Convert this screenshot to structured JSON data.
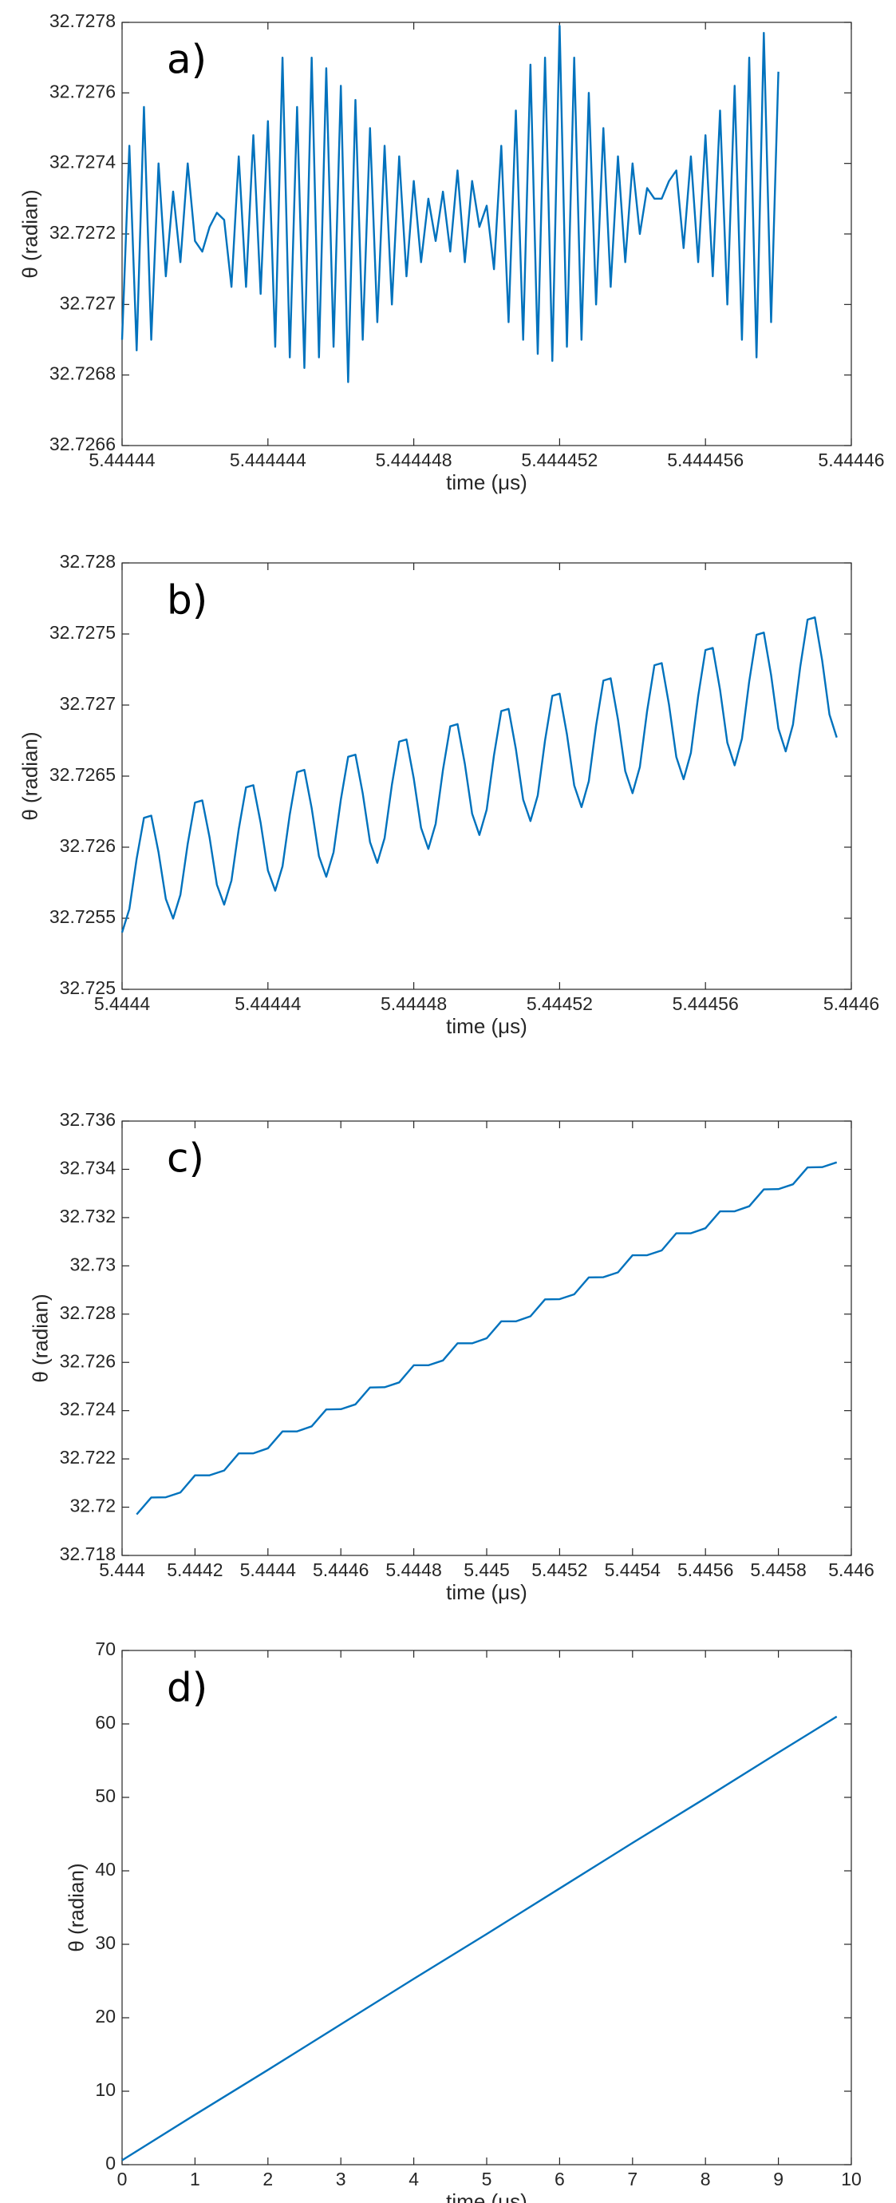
{
  "chart_data": [
    {
      "type": "line",
      "annotation": "a)",
      "xlabel": "time (μs)",
      "ylabel": "θ (radian)",
      "x": [
        5.44444,
        5.4444402,
        5.4444404,
        5.4444406,
        5.4444408,
        5.444441,
        5.4444412,
        5.4444414,
        5.4444416,
        5.4444418,
        5.444442,
        5.4444422,
        5.4444424,
        5.4444426,
        5.4444428,
        5.444443,
        5.4444432,
        5.4444434,
        5.4444436,
        5.4444438,
        5.444444,
        5.4444442,
        5.4444444,
        5.4444446,
        5.4444448,
        5.444445,
        5.4444452,
        5.4444454,
        5.4444456,
        5.4444458,
        5.444446,
        5.4444462,
        5.4444464,
        5.4444466,
        5.4444468,
        5.444447,
        5.4444472,
        5.4444474,
        5.4444476,
        5.4444478,
        5.444448,
        5.4444482,
        5.4444484,
        5.4444486,
        5.4444488,
        5.444449,
        5.4444492,
        5.4444494,
        5.4444496,
        5.4444498,
        5.44445,
        5.4444502,
        5.4444504,
        5.4444506,
        5.4444508,
        5.444451,
        5.4444512,
        5.4444514,
        5.4444516,
        5.4444518,
        5.444452,
        5.4444522,
        5.4444524,
        5.4444526,
        5.4444528,
        5.444453,
        5.4444532,
        5.4444534,
        5.4444536,
        5.4444538,
        5.444454,
        5.4444542,
        5.4444544,
        5.4444546,
        5.4444548,
        5.444455,
        5.4444552,
        5.4444554,
        5.4444556,
        5.4444558,
        5.444456,
        5.4444562,
        5.4444564,
        5.4444566,
        5.4444568,
        5.444457,
        5.4444572,
        5.4444574,
        5.4444576,
        5.4444578,
        5.444458
      ],
      "series": [
        {
          "color": "#0072bd",
          "values": [
            32.7269,
            32.72745,
            32.72687,
            32.72756,
            32.7269,
            32.7274,
            32.72708,
            32.72732,
            32.72712,
            32.7274,
            32.72718,
            32.72715,
            32.72722,
            32.72726,
            32.72724,
            32.72705,
            32.72742,
            32.72705,
            32.72748,
            32.72703,
            32.72752,
            32.72688,
            32.7277,
            32.72685,
            32.72756,
            32.72682,
            32.7277,
            32.72685,
            32.72767,
            32.72688,
            32.72762,
            32.72678,
            32.72758,
            32.7269,
            32.7275,
            32.72695,
            32.72745,
            32.727,
            32.72742,
            32.72708,
            32.72735,
            32.72712,
            32.7273,
            32.72718,
            32.72732,
            32.72715,
            32.72738,
            32.72712,
            32.72735,
            32.72722,
            32.72728,
            32.7271,
            32.72745,
            32.72695,
            32.72755,
            32.7269,
            32.72768,
            32.72686,
            32.7277,
            32.72684,
            32.72779,
            32.72688,
            32.7277,
            32.7269,
            32.7276,
            32.727,
            32.7275,
            32.72705,
            32.72742,
            32.72712,
            32.7274,
            32.7272,
            32.72733,
            32.7273,
            32.7273,
            32.72735,
            32.72738,
            32.72716,
            32.72742,
            32.72712,
            32.72748,
            32.72708,
            32.72755,
            32.727,
            32.72762,
            32.7269,
            32.7277,
            32.72685,
            32.72777,
            32.72695,
            32.72766
          ]
        }
      ],
      "xlim": [
        5.44444,
        5.44446
      ],
      "xticks": [
        5.44444,
        5.444444,
        5.444448,
        5.444452,
        5.444456,
        5.44446
      ],
      "ylim": [
        32.7266,
        32.7278
      ],
      "yticks": [
        32.7266,
        32.7268,
        32.727,
        32.7272,
        32.7274,
        32.7276,
        32.7278
      ],
      "grid": false
    },
    {
      "type": "line",
      "annotation": "b)",
      "xlabel": "time (μs)",
      "ylabel": "θ (radian)",
      "x": [
        5.4444,
        5.444402,
        5.444404,
        5.444406,
        5.444408,
        5.44441,
        5.444412,
        5.444414,
        5.444416,
        5.444418,
        5.44442,
        5.444422,
        5.444424,
        5.444426,
        5.444428,
        5.44443,
        5.444432,
        5.444434,
        5.444436,
        5.444438,
        5.44444,
        5.444442,
        5.444444,
        5.444446,
        5.444448,
        5.44445,
        5.444452,
        5.444454,
        5.444456,
        5.444458,
        5.44446,
        5.444462,
        5.444464,
        5.444466,
        5.444468,
        5.44447,
        5.444472,
        5.444474,
        5.444476,
        5.444478,
        5.44448,
        5.444482,
        5.444484,
        5.444486,
        5.444488,
        5.44449,
        5.444492,
        5.444494,
        5.444496,
        5.444498,
        5.4445,
        5.444502,
        5.444504,
        5.444506,
        5.444508,
        5.44451,
        5.444512,
        5.444514,
        5.444516,
        5.444518,
        5.44452,
        5.444522,
        5.444524,
        5.444526,
        5.444528,
        5.44453,
        5.444532,
        5.444534,
        5.444536,
        5.444538,
        5.44454,
        5.444542,
        5.444544,
        5.444546,
        5.444548,
        5.44455,
        5.444552,
        5.444554,
        5.444556,
        5.444558,
        5.44456,
        5.444562,
        5.444564,
        5.444566,
        5.444568,
        5.44457,
        5.444572,
        5.444574,
        5.444576,
        5.444578,
        5.44458,
        5.444582,
        5.444584,
        5.444586,
        5.444588,
        5.44459,
        5.444592,
        5.444594,
        5.444596
      ],
      "series": [
        {
          "color": "#0072bd",
          "values": [
            32.7254,
            32.725565,
            32.725919,
            32.726206,
            32.726222,
            32.725964,
            32.725636,
            32.725498,
            32.725665,
            32.726023,
            32.726314,
            32.726329,
            32.726068,
            32.725736,
            32.725596,
            32.725765,
            32.726127,
            32.726421,
            32.726436,
            32.726172,
            32.725836,
            32.725694,
            32.725865,
            32.726231,
            32.726528,
            32.726544,
            32.726275,
            32.725936,
            32.725792,
            32.725964,
            32.726335,
            32.726636,
            32.726651,
            32.726379,
            32.726036,
            32.72589,
            32.726064,
            32.726439,
            32.726743,
            32.726758,
            32.726483,
            32.726136,
            32.725988,
            32.726164,
            32.726543,
            32.72685,
            32.726866,
            32.726587,
            32.726236,
            32.726086,
            32.726264,
            32.726647,
            32.726958,
            32.726973,
            32.726691,
            32.726335,
            32.726184,
            32.726364,
            32.726751,
            32.727065,
            32.72708,
            32.726795,
            32.726435,
            32.726282,
            32.726464,
            32.726855,
            32.727172,
            32.727188,
            32.726899,
            32.726535,
            32.72638,
            32.726564,
            32.726959,
            32.72728,
            32.727295,
            32.727003,
            32.726635,
            32.726478,
            32.726663,
            32.727063,
            32.727387,
            32.727402,
            32.727107,
            32.726735,
            32.726576,
            32.726763,
            32.727167,
            32.727494,
            32.72751,
            32.727211,
            32.726835,
            32.726674,
            32.726863,
            32.727271,
            32.727601,
            32.727617,
            32.727315,
            32.726934,
            32.726772
          ]
        }
      ],
      "xlim": [
        5.4444,
        5.4446
      ],
      "xticks": [
        5.4444,
        5.44444,
        5.44448,
        5.44452,
        5.44456,
        5.4446
      ],
      "ylim": [
        32.725,
        32.728
      ],
      "yticks": [
        32.725,
        32.7255,
        32.726,
        32.7265,
        32.727,
        32.7275,
        32.728
      ],
      "grid": false
    },
    {
      "type": "line",
      "annotation": "c)",
      "xlabel": "time (μs)",
      "ylabel": "θ (radian)",
      "x": [
        5.44404,
        5.44408,
        5.44412,
        5.44416,
        5.4442,
        5.44424,
        5.44428,
        5.44432,
        5.44436,
        5.4444,
        5.44444,
        5.44448,
        5.44452,
        5.44456,
        5.4446,
        5.44464,
        5.44468,
        5.44472,
        5.44476,
        5.4448,
        5.44484,
        5.44488,
        5.44492,
        5.44496,
        5.445,
        5.44504,
        5.44508,
        5.44512,
        5.44516,
        5.4452,
        5.44524,
        5.44528,
        5.44532,
        5.44536,
        5.4454,
        5.44544,
        5.44548,
        5.44552,
        5.44556,
        5.4456,
        5.44564,
        5.44568,
        5.44572,
        5.44576,
        5.4458,
        5.44584,
        5.44588,
        5.44592,
        5.44596
      ],
      "series": [
        {
          "color": "#0072bd",
          "values": [
            32.7197,
            32.7204,
            32.72041,
            32.72061,
            32.72132,
            32.72132,
            32.72152,
            32.72223,
            32.72223,
            32.72244,
            32.72314,
            32.72314,
            32.72335,
            32.72405,
            32.72406,
            32.72426,
            32.72496,
            32.72497,
            32.72517,
            32.72588,
            32.72588,
            32.72608,
            32.72679,
            32.72679,
            32.727,
            32.7277,
            32.7277,
            32.72791,
            32.72861,
            32.72862,
            32.72882,
            32.72952,
            32.72953,
            32.72973,
            32.73044,
            32.73044,
            32.73064,
            32.73135,
            32.73135,
            32.73156,
            32.73226,
            32.73226,
            32.73247,
            32.73317,
            32.73318,
            32.73338,
            32.73408,
            32.73409,
            32.73429
          ]
        }
      ],
      "xlim": [
        5.444,
        5.446
      ],
      "xticks": [
        5.444,
        5.4442,
        5.4444,
        5.4446,
        5.4448,
        5.445,
        5.4452,
        5.4454,
        5.4456,
        5.4458,
        5.446
      ],
      "ylim": [
        32.718,
        32.736
      ],
      "yticks": [
        32.718,
        32.72,
        32.722,
        32.724,
        32.726,
        32.728,
        32.73,
        32.732,
        32.734,
        32.736
      ],
      "grid": false
    },
    {
      "type": "line",
      "annotation": "d)",
      "xlabel": "time (μs)",
      "ylabel": "θ (radian)",
      "x": [
        0,
        1,
        2,
        3,
        4,
        5,
        6,
        7,
        8,
        9,
        9.8
      ],
      "series": [
        {
          "color": "#0072bd",
          "values": [
            0.6,
            6.8,
            12.9,
            19.1,
            25.3,
            31.4,
            37.6,
            43.8,
            49.9,
            56.1,
            61
          ]
        }
      ],
      "xlim": [
        0,
        10
      ],
      "xticks": [
        0,
        1,
        2,
        3,
        4,
        5,
        6,
        7,
        8,
        9,
        10
      ],
      "ylim": [
        0,
        70
      ],
      "yticks": [
        0,
        10,
        20,
        30,
        40,
        50,
        60,
        70
      ],
      "grid": false
    }
  ]
}
